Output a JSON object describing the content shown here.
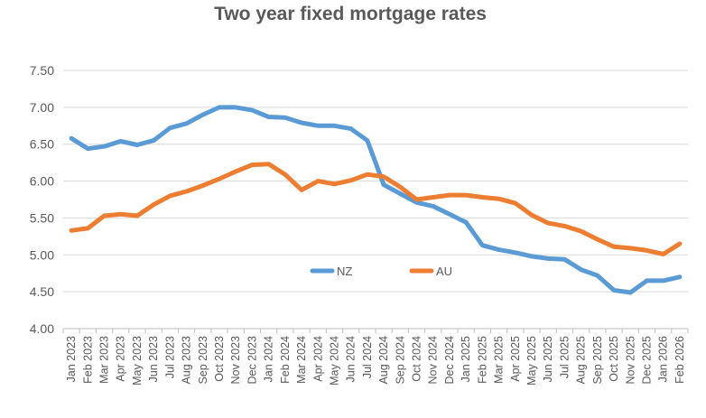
{
  "chart_data": {
    "type": "line",
    "title": "Two year fixed mortgage rates",
    "xlabel": "",
    "ylabel": "",
    "ylim": [
      4.0,
      7.5
    ],
    "yticks": [
      "4.00",
      "4.50",
      "5.00",
      "5.50",
      "6.00",
      "6.50",
      "7.00",
      "7.50"
    ],
    "categories": [
      "Jan 2023",
      "Feb 2023",
      "Mar 2023",
      "Apr 2023",
      "May 2023",
      "Jun 2023",
      "Jul 2023",
      "Aug 2023",
      "Sep 2023",
      "Oct 2023",
      "Nov 2023",
      "Dec 2023",
      "Jan 2024",
      "Feb 2024",
      "Mar 2024",
      "Apr 2024",
      "May 2024",
      "Jun 2024",
      "Jul 2024",
      "Aug 2024",
      "Sep 2024",
      "Oct 2024",
      "Nov 2024",
      "Dec 2024",
      "Jan 2025",
      "Feb 2025",
      "Mar 2025",
      "Apr 2025",
      "May 2025",
      "Jun 2025",
      "Jul 2025",
      "Aug 2025",
      "Sep 2025",
      "Oct 2025",
      "Nov 2025",
      "Dec 2025",
      "Jan 2026",
      "Feb 2026"
    ],
    "grid": true,
    "legend_position": "inside-bottom-center",
    "series": [
      {
        "name": "NZ",
        "color": "#5B9BD5",
        "values": [
          6.58,
          6.44,
          6.47,
          6.54,
          6.49,
          6.55,
          6.72,
          6.78,
          6.9,
          7.0,
          7.0,
          6.96,
          6.87,
          6.86,
          6.79,
          6.75,
          6.75,
          6.71,
          6.55,
          5.95,
          5.83,
          5.71,
          5.66,
          5.55,
          5.44,
          5.13,
          5.07,
          5.03,
          4.98,
          4.95,
          4.94,
          4.8,
          4.72,
          4.52,
          4.49,
          4.65,
          4.65,
          4.7
        ]
      },
      {
        "name": "AU",
        "color": "#ED7D31",
        "values": [
          5.33,
          5.36,
          5.53,
          5.55,
          5.53,
          5.68,
          5.8,
          5.86,
          5.94,
          6.03,
          6.13,
          6.22,
          6.23,
          6.09,
          5.88,
          6.0,
          5.96,
          6.01,
          6.09,
          6.06,
          5.92,
          5.75,
          5.78,
          5.81,
          5.81,
          5.78,
          5.76,
          5.7,
          5.54,
          5.43,
          5.39,
          5.32,
          5.21,
          5.11,
          5.09,
          5.06,
          5.01,
          5.15
        ]
      }
    ]
  }
}
